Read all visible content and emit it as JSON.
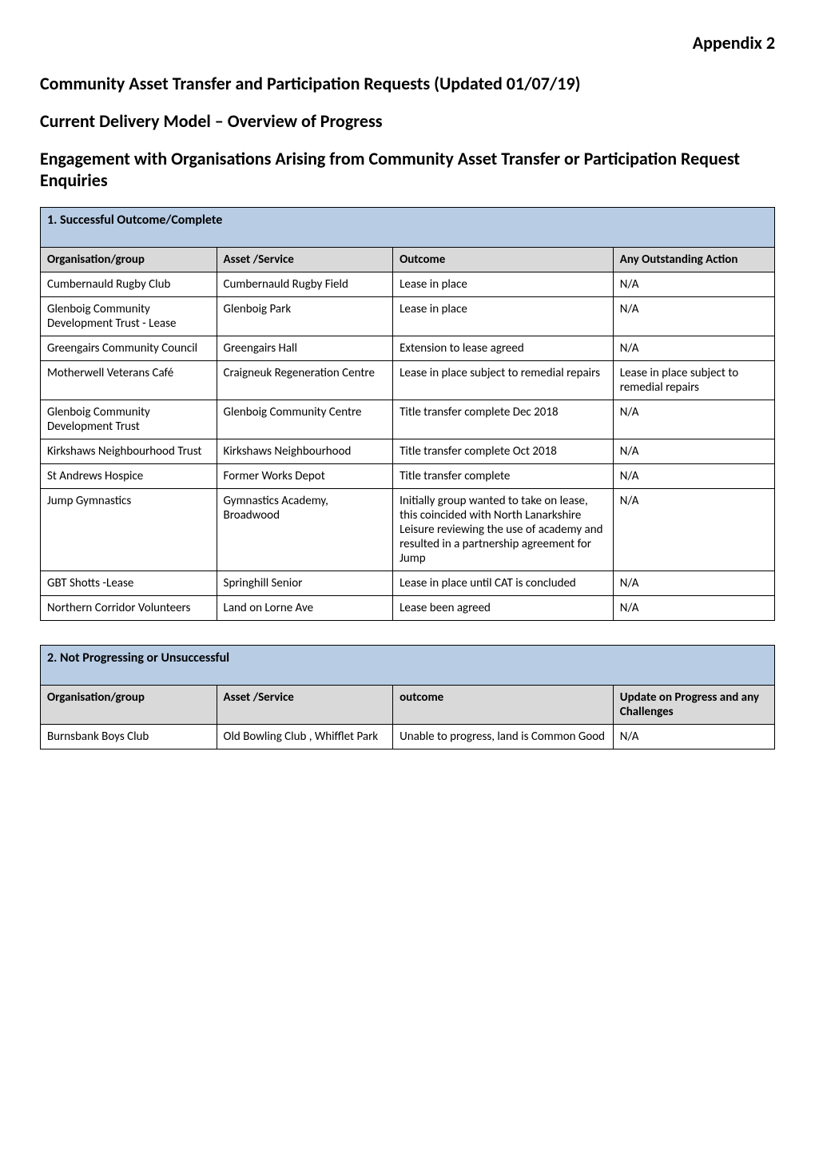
{
  "appendix": "Appendix 2",
  "title1": "Community Asset Transfer and Participation Requests (Updated 01/07/19)",
  "title2": "Current Delivery Model – Overview of Progress",
  "title3": "Engagement with Organisations Arising from Community Asset Transfer or Participation Request Enquiries",
  "table1": {
    "section_header": "1.   Successful Outcome/Complete",
    "columns": [
      "Organisation/group",
      "Asset /Service",
      "Outcome",
      "Any Outstanding Action"
    ],
    "rows": [
      [
        "Cumbernauld Rugby Club",
        "Cumbernauld Rugby Field",
        "Lease in place",
        "N/A"
      ],
      [
        "Glenboig Community Development Trust - Lease",
        "Glenboig Park",
        "Lease in place",
        "N/A"
      ],
      [
        "Greengairs Community Council",
        "Greengairs Hall",
        "Extension to lease agreed",
        "N/A"
      ],
      [
        "Motherwell Veterans Café",
        "Craigneuk Regeneration Centre",
        "Lease in place subject to remedial repairs",
        "Lease in place subject to remedial repairs"
      ],
      [
        "Glenboig Community Development Trust",
        "Glenboig Community Centre",
        "Title transfer complete Dec 2018",
        "N/A"
      ],
      [
        "Kirkshaws Neighbourhood Trust",
        "Kirkshaws Neighbourhood",
        "Title transfer complete Oct 2018",
        "N/A"
      ],
      [
        "St Andrews Hospice",
        "Former Works Depot",
        "Title transfer complete",
        "N/A"
      ],
      [
        "Jump Gymnastics",
        "Gymnastics Academy, Broadwood",
        "Initially group wanted to take on lease, this coincided with North Lanarkshire Leisure reviewing the use of academy and resulted in a partnership agreement for Jump",
        "N/A"
      ],
      [
        "GBT Shotts -Lease",
        "Springhill Senior",
        "Lease in place until CAT is concluded",
        "N/A"
      ],
      [
        "Northern Corridor Volunteers",
        "Land on Lorne Ave",
        "Lease been agreed",
        "N/A"
      ]
    ]
  },
  "table2": {
    "section_header": "2.   Not Progressing or Unsuccessful",
    "columns": [
      "Organisation/group",
      "Asset /Service",
      "outcome",
      "Update on Progress and any Challenges"
    ],
    "rows": [
      [
        "Burnsbank Boys Club",
        "Old Bowling Club , Whifflet Park",
        "Unable to progress, land is Common Good",
        "N/A"
      ]
    ]
  },
  "colors": {
    "section_header_bg": "#b8cce4",
    "col_header_bg": "#d9d9d9",
    "border": "#000000",
    "text": "#000000",
    "background": "#ffffff"
  },
  "fonts": {
    "body_family": "Calibri, Arial, sans-serif",
    "heading_size": 22,
    "cell_size": 15,
    "section_header_size": 16
  }
}
